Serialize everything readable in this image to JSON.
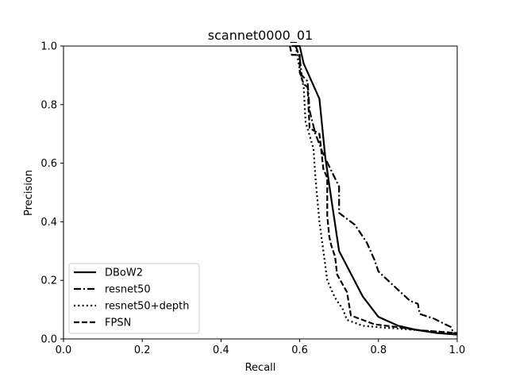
{
  "chart_data": {
    "type": "line",
    "title": "scannet0000_01",
    "xlabel": "Recall",
    "ylabel": "Precision",
    "xlim": [
      0.0,
      1.0
    ],
    "ylim": [
      0.0,
      1.0
    ],
    "xticks": [
      "0.0",
      "0.2",
      "0.4",
      "0.6",
      "0.8",
      "1.0"
    ],
    "yticks": [
      "0.0",
      "0.2",
      "0.4",
      "0.6",
      "0.8",
      "1.0"
    ],
    "grid": false,
    "legend": "lower-left",
    "series": [
      {
        "name": "DBoW2",
        "dash": "solid",
        "color": "#000000",
        "points": [
          [
            0.58,
            1.0
          ],
          [
            0.6,
            1.0
          ],
          [
            0.61,
            0.94
          ],
          [
            0.65,
            0.82
          ],
          [
            0.665,
            0.62
          ],
          [
            0.68,
            0.48
          ],
          [
            0.7,
            0.3
          ],
          [
            0.76,
            0.145
          ],
          [
            0.8,
            0.075
          ],
          [
            0.85,
            0.045
          ],
          [
            0.9,
            0.03
          ],
          [
            0.95,
            0.02
          ],
          [
            1.0,
            0.015
          ]
        ]
      },
      {
        "name": "resnet50",
        "dash": "dashdot",
        "color": "#000000",
        "points": [
          [
            0.59,
            1.0
          ],
          [
            0.6,
            0.96
          ],
          [
            0.605,
            0.9
          ],
          [
            0.62,
            0.88
          ],
          [
            0.625,
            0.78
          ],
          [
            0.64,
            0.7
          ],
          [
            0.66,
            0.63
          ],
          [
            0.7,
            0.52
          ],
          [
            0.7,
            0.43
          ],
          [
            0.74,
            0.39
          ],
          [
            0.77,
            0.33
          ],
          [
            0.79,
            0.27
          ],
          [
            0.8,
            0.23
          ],
          [
            0.84,
            0.18
          ],
          [
            0.88,
            0.13
          ],
          [
            0.9,
            0.12
          ],
          [
            0.905,
            0.085
          ],
          [
            0.94,
            0.07
          ],
          [
            0.97,
            0.05
          ],
          [
            0.985,
            0.04
          ],
          [
            0.99,
            0.02
          ],
          [
            1.0,
            0.02
          ]
        ]
      },
      {
        "name": "resnet50+depth",
        "dash": "dotted",
        "color": "#000000",
        "points": [
          [
            0.59,
            1.0
          ],
          [
            0.6,
            0.92
          ],
          [
            0.61,
            0.86
          ],
          [
            0.615,
            0.74
          ],
          [
            0.635,
            0.65
          ],
          [
            0.64,
            0.55
          ],
          [
            0.65,
            0.4
          ],
          [
            0.66,
            0.3
          ],
          [
            0.67,
            0.2
          ],
          [
            0.69,
            0.14
          ],
          [
            0.71,
            0.1
          ],
          [
            0.72,
            0.065
          ],
          [
            0.76,
            0.045
          ],
          [
            0.8,
            0.04
          ],
          [
            0.9,
            0.03
          ],
          [
            1.0,
            0.02
          ]
        ]
      },
      {
        "name": "FPSN",
        "dash": "dashed",
        "color": "#000000",
        "points": [
          [
            0.575,
            1.0
          ],
          [
            0.58,
            0.97
          ],
          [
            0.6,
            0.97
          ],
          [
            0.6,
            0.91
          ],
          [
            0.61,
            0.87
          ],
          [
            0.62,
            0.86
          ],
          [
            0.625,
            0.72
          ],
          [
            0.65,
            0.7
          ],
          [
            0.66,
            0.58
          ],
          [
            0.67,
            0.55
          ],
          [
            0.67,
            0.42
          ],
          [
            0.675,
            0.35
          ],
          [
            0.68,
            0.32
          ],
          [
            0.69,
            0.28
          ],
          [
            0.695,
            0.22
          ],
          [
            0.72,
            0.16
          ],
          [
            0.73,
            0.08
          ],
          [
            0.77,
            0.06
          ],
          [
            0.79,
            0.05
          ],
          [
            0.85,
            0.04
          ],
          [
            0.9,
            0.03
          ],
          [
            1.0,
            0.02
          ]
        ]
      }
    ]
  }
}
